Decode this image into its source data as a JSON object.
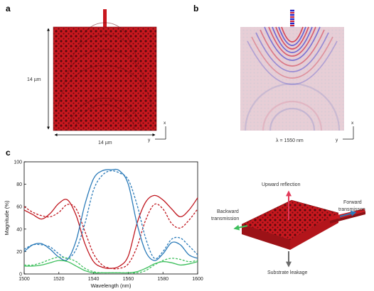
{
  "panels": {
    "a": {
      "label": "a",
      "height_label": "14 µm",
      "width_label": "14 µm",
      "axes": {
        "x": "x",
        "y": "y"
      }
    },
    "b": {
      "label": "b",
      "wavelength_label": "λ = 1550 nm",
      "axes": {
        "x": "x",
        "y": "y"
      }
    },
    "c": {
      "label": "c"
    }
  },
  "device3d": {
    "upward": "Upward reflection",
    "backward": [
      "Backward",
      "transmission"
    ],
    "forward": [
      "Forward",
      "transmisson"
    ],
    "substrate": "Substrate leakage"
  },
  "colors": {
    "device_red": "#c8171e",
    "red": "#c0171f",
    "blue": "#2b7bb9",
    "green": "#3dbf5c"
  },
  "chart_data": {
    "type": "line",
    "xlabel": "Wavelength (nm)",
    "ylabel": "Magnitude (%)",
    "xlim": [
      1500,
      1600
    ],
    "ylim": [
      0,
      100
    ],
    "xticks": [
      1500,
      1520,
      1540,
      1560,
      1580,
      1600
    ],
    "yticks": [
      0,
      20,
      40,
      60,
      80,
      100
    ],
    "x": [
      1500,
      1505,
      1510,
      1515,
      1520,
      1525,
      1530,
      1535,
      1540,
      1545,
      1550,
      1555,
      1560,
      1565,
      1570,
      1575,
      1580,
      1585,
      1590,
      1595,
      1600
    ],
    "series": [
      {
        "color": "#c0171f",
        "style": "solid",
        "values": [
          57,
          53,
          49,
          54,
          63,
          66,
          52,
          27,
          11,
          6,
          5,
          7,
          16,
          45,
          64,
          70,
          66,
          58,
          51,
          57,
          68
        ]
      },
      {
        "color": "#c0171f",
        "style": "dashed",
        "values": [
          60,
          55,
          52,
          51,
          55,
          62,
          58,
          38,
          18,
          8,
          5,
          5,
          9,
          24,
          48,
          62,
          58,
          45,
          41,
          48,
          58
        ]
      },
      {
        "color": "#2b7bb9",
        "style": "solid",
        "values": [
          20,
          26,
          27,
          22,
          15,
          13,
          30,
          62,
          85,
          92,
          93,
          92,
          80,
          45,
          20,
          12,
          18,
          28,
          26,
          17,
          14
        ]
      },
      {
        "color": "#2b7bb9",
        "style": "dashed",
        "values": [
          22,
          26,
          26,
          24,
          18,
          14,
          22,
          45,
          75,
          88,
          92,
          90,
          84,
          62,
          32,
          14,
          20,
          31,
          32,
          25,
          17
        ]
      },
      {
        "color": "#3dbf5c",
        "style": "solid",
        "values": [
          7,
          7,
          8,
          10,
          12,
          11,
          7,
          3,
          1,
          1,
          1,
          1,
          1,
          2,
          5,
          9,
          11,
          10,
          8,
          9,
          11
        ]
      },
      {
        "color": "#3dbf5c",
        "style": "dashed",
        "values": [
          8,
          8,
          10,
          13,
          15,
          14,
          11,
          5,
          2,
          1,
          1,
          1,
          1,
          1,
          3,
          8,
          12,
          14,
          13,
          11,
          12
        ]
      }
    ]
  }
}
